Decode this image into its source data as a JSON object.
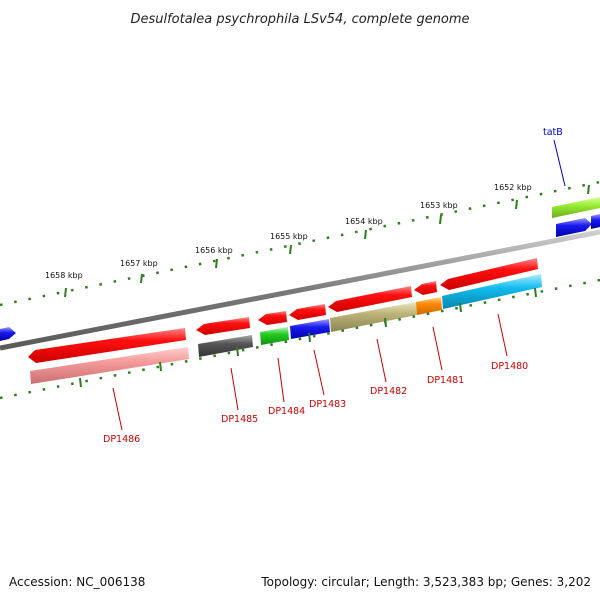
{
  "title": "Desulfotalea psychrophila LSv54, complete genome",
  "footer": {
    "accession": "Accession: NC_006138",
    "topology": "Topology: circular; Length: 3,523,383 bp; Genes: 3,202"
  },
  "colors": {
    "backbone": "#808080",
    "ticks": "#2e7d1e",
    "gene_label": "#cc0000",
    "trna_label": "#0000cc"
  },
  "scale_labels": [
    "1658 kbp",
    "1657 kbp",
    "1656 kbp",
    "1655 kbp",
    "1654 kbp",
    "1653 kbp",
    "1652 kbp"
  ],
  "gene_labels": [
    "DP1486",
    "DP1485",
    "DP1484",
    "DP1483",
    "DP1482",
    "DP1481",
    "DP1480",
    "tatB"
  ],
  "features": [
    {
      "track": "forward-outer",
      "color": "#99ee33",
      "strand": "+"
    },
    {
      "track": "forward-inner",
      "color": "#0000ee",
      "strand": "+"
    },
    {
      "track": "reverse-inner",
      "color": "#ee0000",
      "strand": "-"
    },
    {
      "track": "reverse-outer",
      "color": "#f09090",
      "strand": "-"
    },
    {
      "track": "reverse-outer",
      "color": "#555555",
      "strand": "-"
    },
    {
      "track": "reverse-outer",
      "color": "#22cc22",
      "strand": "-"
    },
    {
      "track": "reverse-outer",
      "color": "#2222ee",
      "strand": "-"
    },
    {
      "track": "reverse-outer",
      "color": "#bbb277",
      "strand": "-"
    },
    {
      "track": "reverse-outer",
      "color": "#ff8800",
      "strand": "-"
    },
    {
      "track": "reverse-outer",
      "color": "#11bbee",
      "strand": "-"
    }
  ]
}
